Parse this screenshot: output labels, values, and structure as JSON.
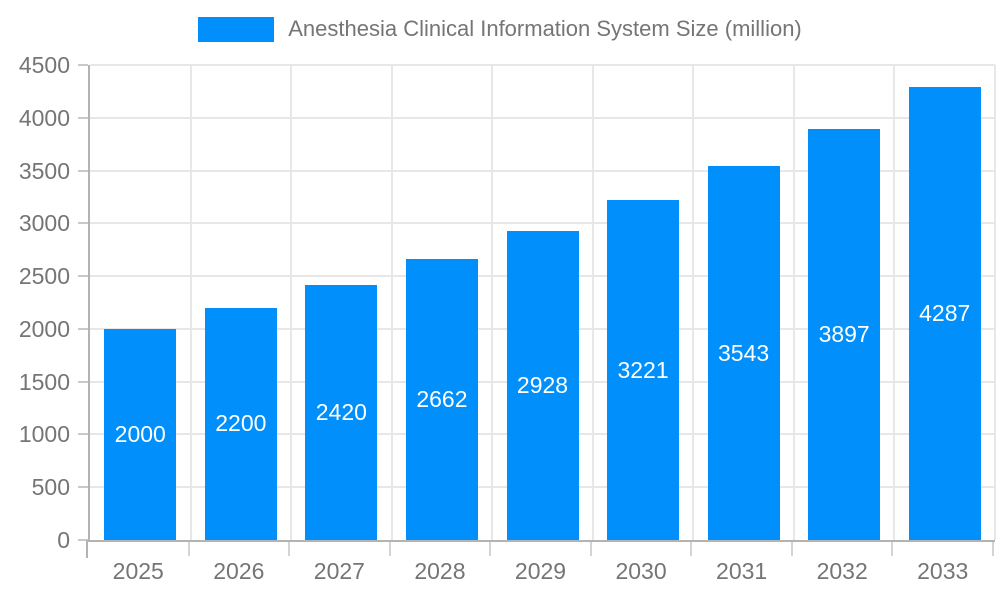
{
  "chart_data": {
    "type": "bar",
    "title": "Anesthesia Clinical Information System Size (million)",
    "legend_position": "top",
    "categories": [
      "2025",
      "2026",
      "2027",
      "2028",
      "2029",
      "2030",
      "2031",
      "2032",
      "2033"
    ],
    "values": [
      2000,
      2200,
      2420,
      2662,
      2928,
      3221,
      3543,
      3897,
      4287
    ],
    "xlabel": "",
    "ylabel": "",
    "ylim": [
      0,
      4500
    ],
    "ytick_step": 500,
    "yticks": [
      0,
      500,
      1000,
      1500,
      2000,
      2500,
      3000,
      3500,
      4000,
      4500
    ],
    "grid": true,
    "value_labels_shown": true,
    "colors": {
      "bar": "#008FFB",
      "grid": "#e7e7e7",
      "axis": "#b3b3b3",
      "tick": "#c9c9c9",
      "axis_text": "#757575",
      "value_label_text": "#ffffff",
      "background": "#ffffff"
    }
  }
}
